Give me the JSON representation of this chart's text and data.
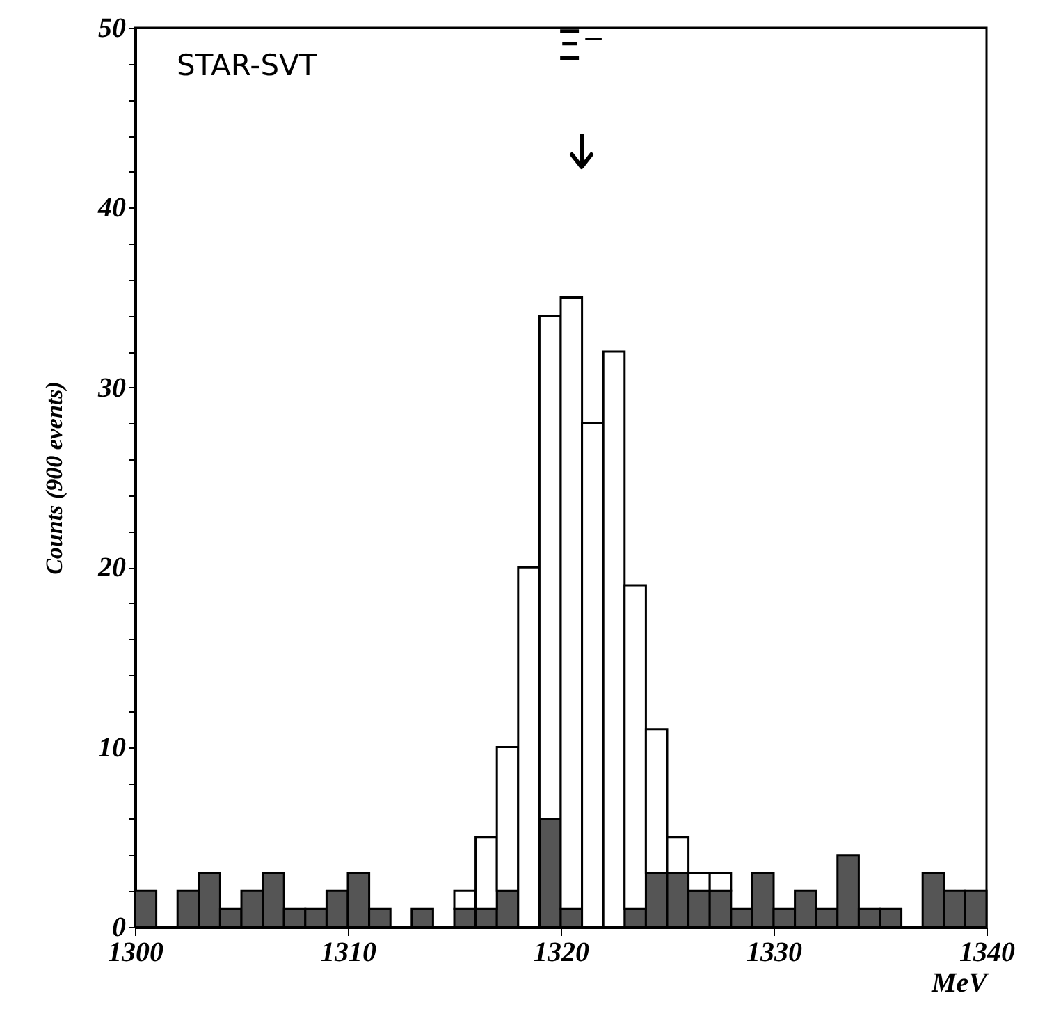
{
  "chart_data": {
    "type": "bar",
    "xlabel": "MeV",
    "ylabel": "Counts (900  events)",
    "annotations": [
      "STAR-SVT",
      "Ξ⁻"
    ],
    "x": [
      1300.5,
      1301.5,
      1302.5,
      1303.5,
      1304.5,
      1305.5,
      1306.5,
      1307.5,
      1308.5,
      1309.5,
      1310.5,
      1311.5,
      1312.5,
      1313.5,
      1314.5,
      1315.5,
      1316.5,
      1317.5,
      1318.5,
      1319.5,
      1320.5,
      1321.5,
      1322.5,
      1323.5,
      1324.5,
      1325.5,
      1326.5,
      1327.5,
      1328.5,
      1329.5,
      1330.5,
      1331.5,
      1332.5,
      1333.5,
      1334.5,
      1335.5,
      1336.5,
      1337.5,
      1338.5,
      1339.5
    ],
    "stacked": true,
    "series": [
      {
        "color": "#555555",
        "values": [
          2,
          0,
          2,
          3,
          1,
          2,
          3,
          1,
          1,
          2,
          3,
          1,
          0,
          1,
          0,
          1,
          1,
          2,
          0,
          6,
          1,
          0,
          0,
          1,
          3,
          3,
          2,
          2,
          1,
          3,
          1,
          2,
          1,
          4,
          1,
          1,
          0,
          3,
          2,
          2
        ]
      },
      {
        "color": "#ffffff",
        "values": [
          null,
          null,
          null,
          null,
          null,
          null,
          null,
          null,
          null,
          null,
          null,
          null,
          null,
          null,
          null,
          1,
          4,
          8,
          20,
          28,
          34,
          28,
          32,
          18,
          8,
          2,
          1,
          1,
          null,
          null,
          null,
          null,
          null,
          null,
          null,
          null,
          null,
          null,
          null,
          null
        ]
      }
    ],
    "xlim": [
      1300,
      1340
    ],
    "xticks": [
      1300,
      1310,
      1320,
      1330,
      1340
    ],
    "ylim": [
      0,
      50
    ],
    "yticks": [
      0,
      {
        "value": 2,
        "label": null
      },
      {
        "value": 4,
        "label": null
      },
      {
        "value": 6,
        "label": null
      },
      {
        "value": 8,
        "label": null
      },
      10,
      {
        "value": 12,
        "label": null
      },
      {
        "value": 14,
        "label": null
      },
      {
        "value": 16,
        "label": null
      },
      {
        "value": 18,
        "label": null
      },
      20,
      {
        "value": 22,
        "label": null
      },
      {
        "value": 24,
        "label": null
      },
      {
        "value": 26,
        "label": null
      },
      {
        "value": 28,
        "label": null
      },
      30,
      {
        "value": 32,
        "label": null
      },
      {
        "value": 34,
        "label": null
      },
      {
        "value": 36,
        "label": null
      },
      {
        "value": 38,
        "label": null
      },
      40,
      {
        "value": 42,
        "label": null
      },
      {
        "value": 44,
        "label": null
      },
      {
        "value": 46,
        "label": null
      },
      {
        "value": 48,
        "label": null
      },
      50
    ],
    "grid": false
  }
}
